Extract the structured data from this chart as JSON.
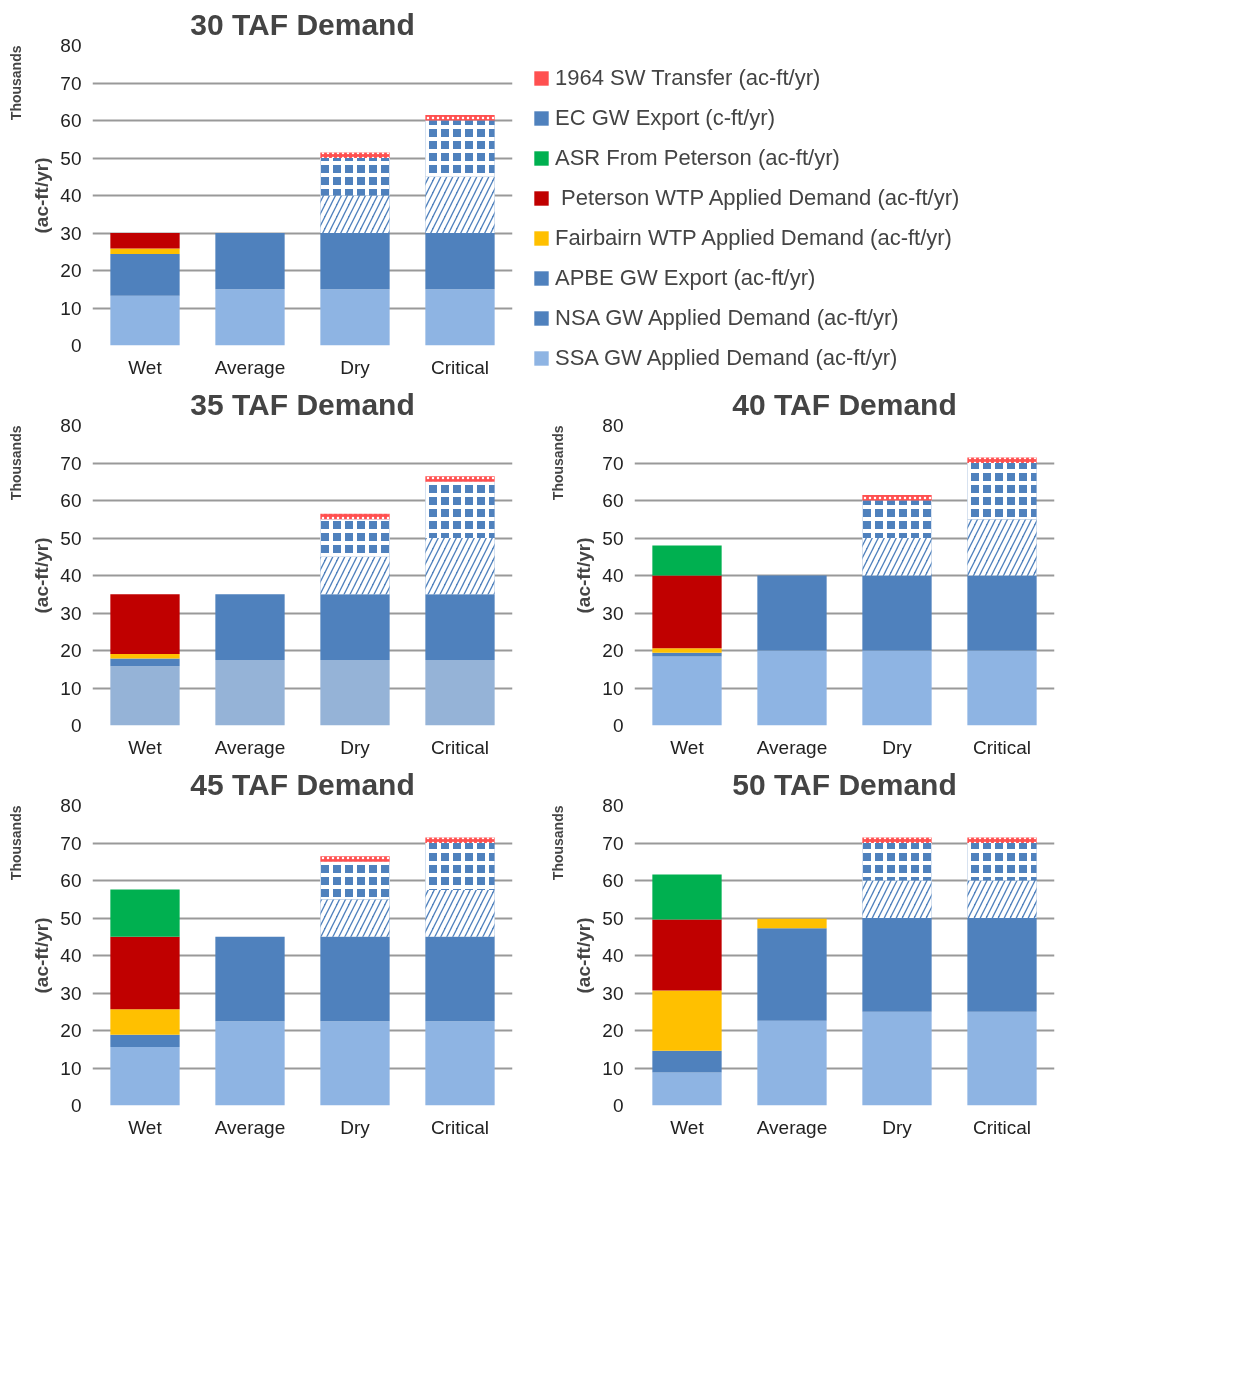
{
  "chart_data": [
    {
      "type": "bar",
      "stacked": true,
      "title": "30 TAF Demand",
      "ylabel": "(ac-ft/yr)",
      "annotations": [
        "Thousands"
      ],
      "categories": [
        "Wet",
        "Average",
        "Dry",
        "Critical"
      ],
      "ylim": [
        0,
        80
      ],
      "yticks": [
        0,
        10,
        20,
        30,
        40,
        50,
        60,
        70,
        80
      ],
      "grid": "y",
      "legend": "right",
      "series": [
        {
          "name": "SSA GW Applied Demand (ac-ft/yr)",
          "color": "#8eb4e3",
          "values": [
            13.3,
            15,
            15,
            15
          ]
        },
        {
          "name": "NSA GW Applied Demand (ac-ft/yr)",
          "color": "#4f81bd",
          "values": [
            11.1,
            15,
            15,
            15
          ]
        },
        {
          "name": "APBE GW Export (ac-ft/yr)",
          "color": "#4f81bd",
          "values": [
            0,
            0,
            10,
            15
          ]
        },
        {
          "name": "Fairbairn WTP Applied Demand (ac-ft/yr)",
          "color": "#ffc000",
          "values": [
            1.5,
            0,
            0,
            0
          ]
        },
        {
          "name": " Peterson WTP Applied Demand (ac-ft/yr)",
          "color": "#c00000",
          "values": [
            4.1,
            0,
            0,
            0
          ]
        },
        {
          "name": "ASR From Peterson (ac-ft/yr)",
          "color": "#00b050",
          "values": [
            0,
            0,
            0,
            0
          ]
        },
        {
          "name": "EC GW Export (c-ft/yr)",
          "color": "#4f81bd",
          "values": [
            0,
            0,
            10,
            15
          ]
        },
        {
          "name": "1964 SW Transfer (ac-ft/yr)",
          "color": "#ff5050",
          "values": [
            0,
            0,
            1.5,
            1.5
          ]
        }
      ]
    },
    {
      "type": "bar",
      "stacked": true,
      "title": "35 TAF Demand",
      "ylabel": "(ac-ft/yr)",
      "annotations": [
        "Thousands"
      ],
      "categories": [
        "Wet",
        "Average",
        "Dry",
        "Critical"
      ],
      "ylim": [
        0,
        80
      ],
      "yticks": [
        0,
        10,
        20,
        30,
        40,
        50,
        60,
        70,
        80
      ],
      "grid": "y",
      "series": [
        {
          "color": "#95b3d7",
          "values": [
            15.8,
            17.5,
            17.5,
            17.5
          ]
        },
        {
          "color": "#4f81bd",
          "values": [
            2.1,
            17.5,
            17.5,
            17.5
          ]
        },
        {
          "color": "#4f81bd",
          "values": [
            0,
            0,
            10,
            15
          ]
        },
        {
          "color": "#ffc000",
          "values": [
            1.2,
            0,
            0,
            0
          ]
        },
        {
          "color": "#c00000",
          "values": [
            15.9,
            0,
            0,
            0
          ]
        },
        {
          "color": "#00b050",
          "values": [
            0,
            0,
            0,
            0
          ]
        },
        {
          "color": "#4f81bd",
          "values": [
            0,
            0,
            10,
            15
          ]
        },
        {
          "color": "#ff5050",
          "values": [
            0,
            0,
            1.5,
            1.5
          ]
        }
      ]
    },
    {
      "type": "bar",
      "stacked": true,
      "title": "40 TAF Demand",
      "ylabel": "(ac-ft/yr)",
      "annotations": [
        "Thousands"
      ],
      "categories": [
        "Wet",
        "Average",
        "Dry",
        "Critical"
      ],
      "ylim": [
        0,
        80
      ],
      "yticks": [
        0,
        10,
        20,
        30,
        40,
        50,
        60,
        70,
        80
      ],
      "grid": "y",
      "series": [
        {
          "color": "#8eb4e3",
          "values": [
            18.4,
            20,
            20,
            20
          ]
        },
        {
          "color": "#4f81bd",
          "values": [
            1.0,
            20,
            20,
            20
          ]
        },
        {
          "color": "#4f81bd",
          "values": [
            0,
            0,
            10,
            15
          ]
        },
        {
          "color": "#ffc000",
          "values": [
            1.2,
            0,
            0,
            0
          ]
        },
        {
          "color": "#c00000",
          "values": [
            19.4,
            0,
            0,
            0
          ]
        },
        {
          "color": "#00b050",
          "values": [
            8,
            0,
            0,
            0
          ]
        },
        {
          "color": "#4f81bd",
          "values": [
            0,
            0,
            10,
            15
          ]
        },
        {
          "color": "#ff5050",
          "values": [
            0,
            0,
            1.5,
            1.5
          ]
        }
      ]
    },
    {
      "type": "bar",
      "stacked": true,
      "title": "45 TAF Demand",
      "ylabel": "(ac-ft/yr)",
      "annotations": [
        "Thousands"
      ],
      "categories": [
        "Wet",
        "Average",
        "Dry",
        "Critical"
      ],
      "ylim": [
        0,
        80
      ],
      "yticks": [
        0,
        10,
        20,
        30,
        40,
        50,
        60,
        70,
        80
      ],
      "grid": "y",
      "series": [
        {
          "color": "#8eb4e3",
          "values": [
            15.6,
            22.5,
            22.5,
            22.5
          ]
        },
        {
          "color": "#4f81bd",
          "values": [
            3.3,
            22.5,
            22.5,
            22.5
          ]
        },
        {
          "color": "#4f81bd",
          "values": [
            0,
            0,
            10,
            12.5
          ]
        },
        {
          "color": "#ffc000",
          "values": [
            6.8,
            0,
            0,
            0
          ]
        },
        {
          "color": "#c00000",
          "values": [
            19.3,
            0,
            0,
            0
          ]
        },
        {
          "color": "#00b050",
          "values": [
            12.6,
            0,
            0,
            0
          ]
        },
        {
          "color": "#4f81bd",
          "values": [
            0,
            0,
            10,
            12.5
          ]
        },
        {
          "color": "#ff5050",
          "values": [
            0,
            0,
            1.5,
            1.5
          ]
        }
      ]
    },
    {
      "type": "bar",
      "stacked": true,
      "title": "50 TAF Demand",
      "ylabel": "(ac-ft/yr)",
      "annotations": [
        "Thousands"
      ],
      "categories": [
        "Wet",
        "Average",
        "Dry",
        "Critical"
      ],
      "ylim": [
        0,
        80
      ],
      "yticks": [
        0,
        10,
        20,
        30,
        40,
        50,
        60,
        70,
        80
      ],
      "grid": "y",
      "series": [
        {
          "color": "#8eb4e3",
          "values": [
            8.8,
            22.6,
            25,
            25
          ]
        },
        {
          "color": "#4f81bd",
          "values": [
            5.8,
            24.7,
            25,
            25
          ]
        },
        {
          "color": "#4f81bd",
          "values": [
            0,
            0,
            10,
            10
          ]
        },
        {
          "color": "#ffc000",
          "values": [
            16.1,
            2.5,
            0,
            0
          ]
        },
        {
          "color": "#c00000",
          "values": [
            18.9,
            0,
            0,
            0
          ]
        },
        {
          "color": "#00b050",
          "values": [
            12,
            0,
            0,
            0
          ]
        },
        {
          "color": "#4f81bd",
          "values": [
            0,
            0,
            10,
            10
          ]
        },
        {
          "color": "#ff5050",
          "values": [
            0,
            0,
            1.5,
            1.5
          ]
        }
      ]
    }
  ]
}
